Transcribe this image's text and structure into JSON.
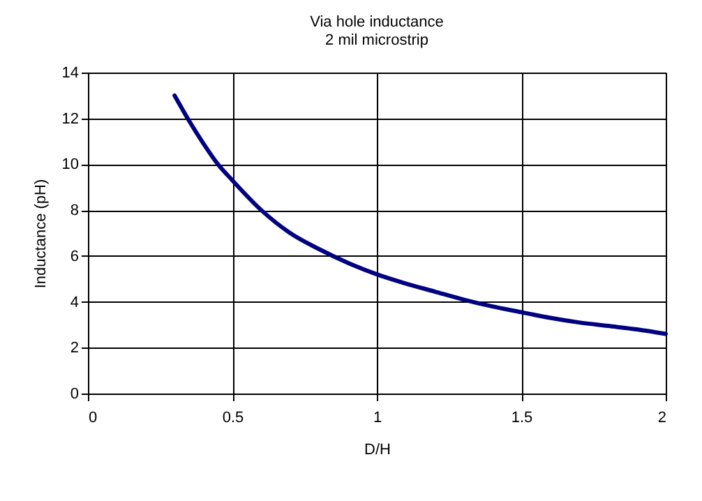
{
  "chart_data": {
    "type": "line",
    "title": "Via hole inductance",
    "subtitle": "2 mil microstrip",
    "xlabel": "D/H",
    "ylabel": "Inductance (pH)",
    "x": [
      0.3,
      0.35,
      0.4,
      0.45,
      0.5,
      0.6,
      0.7,
      0.8,
      0.9,
      1.0,
      1.1,
      1.2,
      1.3,
      1.4,
      1.5,
      1.6,
      1.7,
      1.8,
      1.9,
      2.0
    ],
    "series": [
      {
        "color": "#000080",
        "values": [
          13.0,
          11.9,
          10.9,
          10.0,
          9.3,
          8.0,
          7.0,
          6.3,
          5.7,
          5.2,
          4.8,
          4.45,
          4.1,
          3.8,
          3.55,
          3.3,
          3.1,
          2.95,
          2.8,
          2.6
        ]
      }
    ],
    "xlim": [
      0,
      2
    ],
    "xticks": [
      0,
      0.5,
      1,
      1.5,
      2
    ],
    "ylim": [
      0,
      14
    ],
    "yticks": [
      0,
      2,
      4,
      6,
      8,
      10,
      12,
      14
    ],
    "grid": true,
    "legend": false,
    "marker": "none",
    "line_style": "solid"
  }
}
